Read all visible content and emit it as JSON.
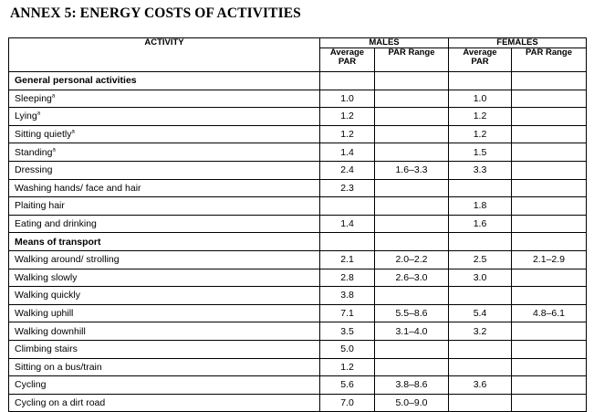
{
  "title": "ANNEX 5: ENERGY COSTS OF ACTIVITIES",
  "headers": {
    "activity": "ACTIVITY",
    "males": "MALES",
    "females": "FEMALES",
    "average_par": "Average PAR",
    "par_range": "PAR Range"
  },
  "rows": [
    {
      "activity": "General personal activities",
      "note": "",
      "section": true,
      "m_avg": "",
      "m_range": "",
      "f_avg": "",
      "f_range": ""
    },
    {
      "activity": "Sleeping",
      "note": "a",
      "section": false,
      "m_avg": "1.0",
      "m_range": "",
      "f_avg": "1.0",
      "f_range": ""
    },
    {
      "activity": "Lying",
      "note": "a",
      "section": false,
      "m_avg": "1.2",
      "m_range": "",
      "f_avg": "1.2",
      "f_range": ""
    },
    {
      "activity": "Sitting quietly",
      "note": "a",
      "section": false,
      "m_avg": "1.2",
      "m_range": "",
      "f_avg": "1.2",
      "f_range": ""
    },
    {
      "activity": "Standing",
      "note": "a",
      "section": false,
      "m_avg": "1.4",
      "m_range": "",
      "f_avg": "1.5",
      "f_range": ""
    },
    {
      "activity": "Dressing",
      "note": "",
      "section": false,
      "m_avg": "2.4",
      "m_range": "1.6–3.3",
      "f_avg": "3.3",
      "f_range": ""
    },
    {
      "activity": "Washing hands/ face and hair",
      "note": "",
      "section": false,
      "m_avg": "2.3",
      "m_range": "",
      "f_avg": "",
      "f_range": ""
    },
    {
      "activity": "Plaiting hair",
      "note": "",
      "section": false,
      "m_avg": "",
      "m_range": "",
      "f_avg": "1.8",
      "f_range": ""
    },
    {
      "activity": "Eating and drinking",
      "note": "",
      "section": false,
      "m_avg": "1.4",
      "m_range": "",
      "f_avg": "1.6",
      "f_range": ""
    },
    {
      "activity": "Means of transport",
      "note": "",
      "section": true,
      "m_avg": "",
      "m_range": "",
      "f_avg": "",
      "f_range": ""
    },
    {
      "activity": "Walking around/ strolling",
      "note": "",
      "section": false,
      "m_avg": "2.1",
      "m_range": "2.0–2.2",
      "f_avg": "2.5",
      "f_range": "2.1–2.9"
    },
    {
      "activity": "Walking slowly",
      "note": "",
      "section": false,
      "m_avg": "2.8",
      "m_range": "2.6–3.0",
      "f_avg": "3.0",
      "f_range": ""
    },
    {
      "activity": "Walking quickly",
      "note": "",
      "section": false,
      "m_avg": "3.8",
      "m_range": "",
      "f_avg": "",
      "f_range": ""
    },
    {
      "activity": "Walking uphill",
      "note": "",
      "section": false,
      "m_avg": "7.1",
      "m_range": "5.5–8.6",
      "f_avg": "5.4",
      "f_range": "4.8–6.1"
    },
    {
      "activity": "Walking downhill",
      "note": "",
      "section": false,
      "m_avg": "3.5",
      "m_range": "3.1–4.0",
      "f_avg": "3.2",
      "f_range": ""
    },
    {
      "activity": "Climbing stairs",
      "note": "",
      "section": false,
      "m_avg": "5.0",
      "m_range": "",
      "f_avg": "",
      "f_range": ""
    },
    {
      "activity": "Sitting on a bus/train",
      "note": "",
      "section": false,
      "m_avg": "1.2",
      "m_range": "",
      "f_avg": "",
      "f_range": ""
    },
    {
      "activity": "Cycling",
      "note": "",
      "section": false,
      "m_avg": "5.6",
      "m_range": "3.8–8.6",
      "f_avg": "3.6",
      "f_range": ""
    },
    {
      "activity": "Cycling on a dirt road",
      "note": "",
      "section": false,
      "m_avg": "7.0",
      "m_range": "5.0–9.0",
      "f_avg": "",
      "f_range": ""
    }
  ]
}
